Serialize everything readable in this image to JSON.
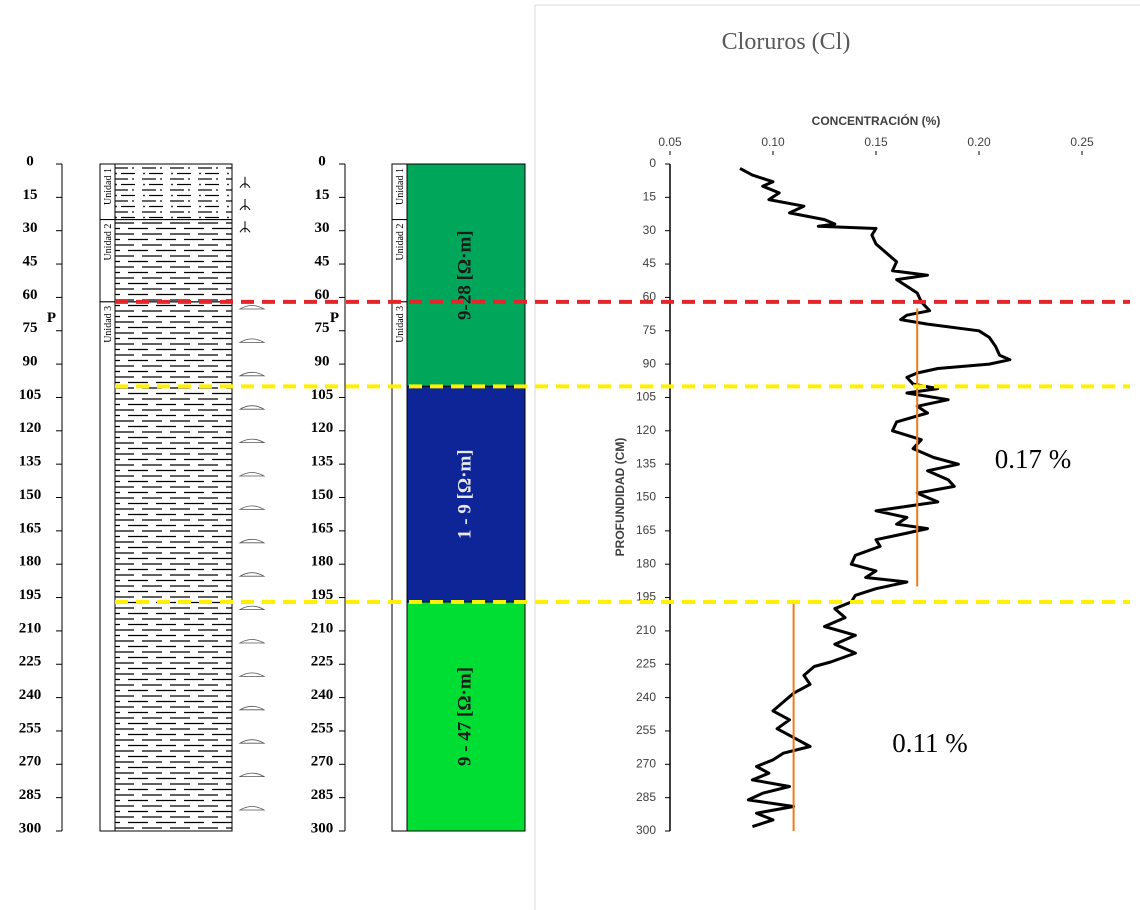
{
  "columns": {
    "depth_ticks": [
      0,
      15,
      30,
      45,
      60,
      75,
      90,
      105,
      120,
      135,
      150,
      165,
      180,
      195,
      210,
      225,
      240,
      255,
      270,
      285,
      300
    ],
    "units": [
      {
        "label": "Unidad 1",
        "top": 0,
        "bottom": 25
      },
      {
        "label": "Unidad 2",
        "top": 25,
        "bottom": 62
      },
      {
        "label": "Unidad 3",
        "top": 62,
        "bottom": 300
      }
    ],
    "marker": "P",
    "marker_depth": 72,
    "resistivity": [
      {
        "label": "9-28 [Ω·m]",
        "top": 0,
        "bottom": 100,
        "color": "#00a65a",
        "text_color": "#1a1a1a"
      },
      {
        "label": "1 - 9 [Ω·m]",
        "top": 100,
        "bottom": 197,
        "color": "#0d2596",
        "text_color": "#e8e8e8"
      },
      {
        "label": "9 - 47 [Ω·m]",
        "top": 197,
        "bottom": 300,
        "color": "#00dd33",
        "text_color": "#1a1a1a"
      }
    ]
  },
  "boundaries": [
    {
      "depth": 62,
      "color": "#e3262a"
    },
    {
      "depth": 100,
      "color": "#fff000"
    },
    {
      "depth": 197,
      "color": "#fff000"
    }
  ],
  "chart_data": {
    "type": "profile",
    "title": "Cloruros (Cl)",
    "x_label": "CONCENTRACIÓN (%)",
    "y_label": "PROFUNDIDAD (CM)",
    "xlim": [
      0.05,
      0.25
    ],
    "xticks": [
      0.05,
      {
        "value": 0.1,
        "label": "0.10"
      },
      0.15,
      {
        "value": 0.2,
        "label": "0.20"
      },
      0.25
    ],
    "ylim": [
      0,
      300
    ],
    "y_inverted": true,
    "yticks": [
      0,
      15,
      30,
      45,
      60,
      75,
      90,
      105,
      120,
      135,
      150,
      165,
      180,
      195,
      210,
      225,
      240,
      255,
      270,
      285,
      300
    ],
    "color": "#000000",
    "depth": [
      2,
      5,
      8,
      10,
      13,
      16,
      19,
      22,
      25,
      27,
      28,
      29,
      32,
      36,
      40,
      44,
      48,
      50,
      52,
      55,
      58,
      62,
      66,
      68,
      70,
      72,
      75,
      78,
      82,
      86,
      88,
      90,
      92,
      94,
      96,
      99,
      101,
      103,
      106,
      109,
      112,
      116,
      120,
      124,
      128,
      132,
      135,
      138,
      142,
      145,
      148,
      152,
      156,
      159,
      162,
      164,
      166,
      169,
      172,
      176,
      180,
      183,
      186,
      188,
      191,
      194,
      197,
      200,
      204,
      208,
      212,
      216,
      220,
      224,
      226,
      230,
      234,
      238,
      242,
      246,
      250,
      254,
      258,
      262,
      265,
      268,
      271,
      274,
      277,
      280,
      283,
      286,
      289,
      292,
      295,
      298
    ],
    "values": [
      0.084,
      0.09,
      0.1,
      0.095,
      0.103,
      0.098,
      0.115,
      0.108,
      0.125,
      0.13,
      0.122,
      0.15,
      0.148,
      0.15,
      0.155,
      0.16,
      0.158,
      0.175,
      0.16,
      0.165,
      0.17,
      0.172,
      0.176,
      0.165,
      0.162,
      0.175,
      0.2,
      0.205,
      0.208,
      0.21,
      0.215,
      0.205,
      0.18,
      0.17,
      0.165,
      0.168,
      0.18,
      0.165,
      0.185,
      0.17,
      0.175,
      0.16,
      0.158,
      0.172,
      0.168,
      0.178,
      0.19,
      0.175,
      0.185,
      0.188,
      0.17,
      0.18,
      0.15,
      0.165,
      0.16,
      0.175,
      0.165,
      0.15,
      0.152,
      0.14,
      0.138,
      0.15,
      0.145,
      0.165,
      0.15,
      0.14,
      0.138,
      0.13,
      0.135,
      0.125,
      0.14,
      0.13,
      0.14,
      0.128,
      0.12,
      0.115,
      0.118,
      0.11,
      0.105,
      0.1,
      0.108,
      0.102,
      0.11,
      0.118,
      0.105,
      0.1,
      0.092,
      0.098,
      0.09,
      0.108,
      0.095,
      0.088,
      0.11,
      0.092,
      0.1,
      0.09
    ],
    "means": [
      {
        "value": 0.17,
        "from": 65,
        "to": 190,
        "label": "0.17 %",
        "color": "#f07a1a"
      },
      {
        "value": 0.11,
        "from": 197,
        "to": 300,
        "label": "0.11 %",
        "color": "#f07a1a"
      }
    ]
  }
}
